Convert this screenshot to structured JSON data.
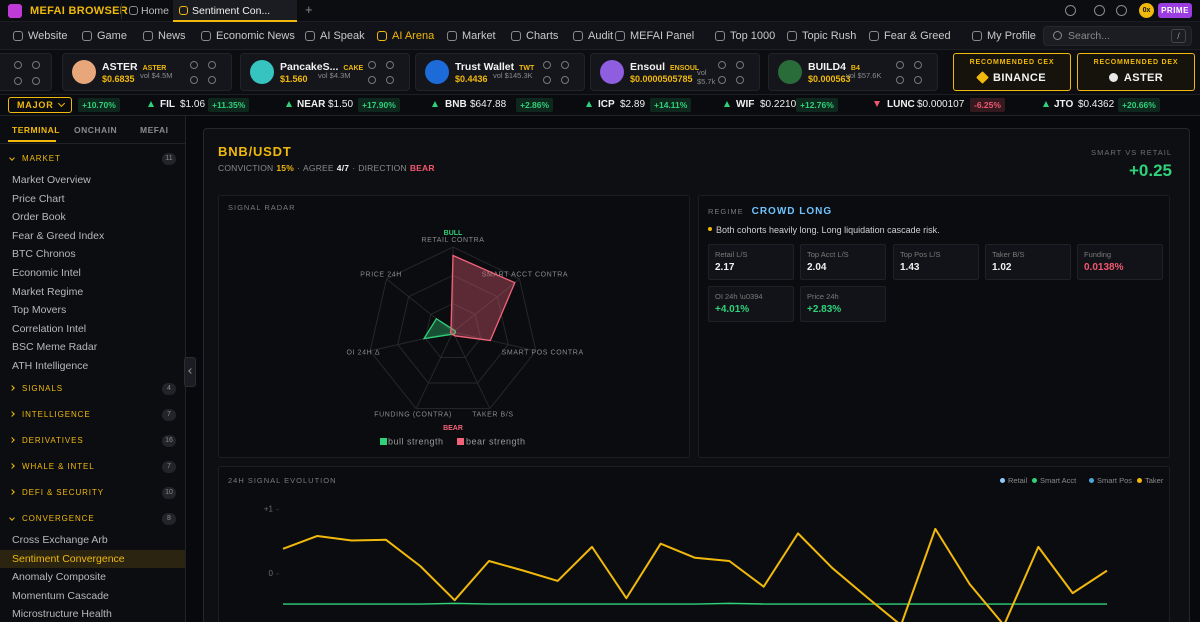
{
  "topbar": {
    "brand": "MEFAI BROWSER",
    "tabs": [
      "Home",
      "Sentiment Con..."
    ],
    "new_tab": "+",
    "wallet": "0x",
    "badge": "PRIME"
  },
  "nav": {
    "items": [
      "Website",
      "Game",
      "News",
      "Economic News",
      "AI Speak",
      "AI Arena",
      "Market",
      "Charts",
      "Audit",
      "MEFAI Panel",
      "Top 1000",
      "Topic Rush",
      "Fear & Greed",
      "My Profile"
    ],
    "active": 5,
    "search": "Search...",
    "shortcut": "/"
  },
  "tokens": [
    {
      "name": "ASTER",
      "ticker": "ASTER",
      "price": "$0.6835",
      "volume": "vol $4.5M"
    },
    {
      "name": "PancakeS...",
      "ticker": "CAKE",
      "price": "$1.560",
      "volume": "vol $4.3M"
    },
    {
      "name": "Trust Wallet",
      "ticker": "TWT",
      "price": "$0.4436",
      "volume": "vol $145.3K"
    },
    {
      "name": "Ensoul",
      "ticker": "ENSOUL",
      "price": "$0.0000505785",
      "volume": "vol $5.7k"
    },
    {
      "name": "BUILD4",
      "ticker": "B4",
      "price": "$0.000563",
      "volume": "vol $57.6K"
    }
  ],
  "recommended": [
    {
      "label": "RECOMMENDED CEX",
      "name": "BINANCE"
    },
    {
      "label": "RECOMMENDED DEX",
      "name": "ASTER"
    }
  ],
  "ticker": {
    "filter": "MAJOR",
    "items": [
      {
        "change": "+10.70%"
      },
      {
        "symbol": "FIL",
        "price": "$1.06",
        "change": "+11.35%"
      },
      {
        "symbol": "NEAR",
        "price": "$1.50",
        "change": "+17.90%"
      },
      {
        "symbol": "BNB",
        "price": "$647.88",
        "change": "+2.86%"
      },
      {
        "symbol": "ICP",
        "price": "$2.89",
        "change": "+14.11%"
      },
      {
        "symbol": "WIF",
        "price": "$0.2210",
        "change": "+12.76%"
      },
      {
        "symbol": "LUNC",
        "price": "$0.000107",
        "change": "-6.25%"
      },
      {
        "symbol": "JTO",
        "price": "$0.4362",
        "change": "+20.66%"
      }
    ]
  },
  "sidebar": {
    "tabs": [
      "TERMINAL",
      "ONCHAIN",
      "MEFAI"
    ],
    "sections": [
      {
        "title": "MARKET",
        "count": 11,
        "items": [
          "Market Overview",
          "Price Chart",
          "Order Book",
          "Fear & Greed Index",
          "BTC Chronos",
          "Economic Intel",
          "Market Regime",
          "Top Movers",
          "Correlation Intel",
          "BSC Meme Radar",
          "ATH Intelligence"
        ]
      },
      {
        "title": "SIGNALS",
        "count": 4
      },
      {
        "title": "INTELLIGENCE",
        "count": 7
      },
      {
        "title": "DERIVATIVES",
        "count": 16
      },
      {
        "title": "WHALE & INTEL",
        "count": 7
      },
      {
        "title": "DEFI & SECURITY",
        "count": 10
      },
      {
        "title": "CONVERGENCE",
        "count": 8,
        "items": [
          "Cross Exchange Arb",
          "Sentiment Convergence",
          "Anomaly Composite",
          "Momentum Cascade",
          "Microstructure Health"
        ],
        "active": 1
      }
    ]
  },
  "signal": {
    "pair": "BNB/USDT",
    "separator": "·",
    "conviction_label": "CONVICTION",
    "conviction": "15%",
    "agree_label": "AGREE",
    "agree": "4/7",
    "direction_label": "DIRECTION",
    "direction": "BEAR",
    "smart_vs_retail_label": "SMART VS RETAIL",
    "smart_vs_retail": "+0.25"
  },
  "regime": {
    "label": "REGIME",
    "value": "CROWD LONG",
    "note": "Both cohorts heavily long. Long liquidation cascade risk.",
    "stats": [
      {
        "label": "Retail L/S",
        "value": "2.17"
      },
      {
        "label": "Top Acct L/S",
        "value": "2.04"
      },
      {
        "label": "Top Pos L/S",
        "value": "1.43"
      },
      {
        "label": "Taker B/S",
        "value": "1.02"
      },
      {
        "label": "Funding",
        "value": "0.0138%",
        "color": "#f2576f"
      },
      {
        "label": "OI 24h \\u0394",
        "value": "+4.01%",
        "color": "#2fd17a"
      },
      {
        "label": "Price 24h",
        "value": "+2.83%",
        "color": "#2fd17a"
      }
    ]
  },
  "chart_data": [
    {
      "type": "radar",
      "title": "SIGNAL RADAR",
      "top_label": "BULL",
      "bottom_label": "BEAR",
      "axes": [
        "RETAIL CONTRA",
        "SMART ACCT CONTRA",
        "SMART POS CONTRA",
        "TAKER B/S",
        "FUNDING (CONTRA)",
        "OI 24H Δ",
        "PRICE 24H"
      ],
      "rlim": [
        0,
        1
      ],
      "series": [
        {
          "name": "bull strength",
          "color": "#2fd17a",
          "values": [
            0.03,
            0.03,
            0.03,
            0.03,
            0.03,
            0.35,
            0.25
          ]
        },
        {
          "name": "bear strength",
          "color": "#f2637a",
          "values": [
            0.9,
            0.93,
            0.45,
            0.05,
            0.03,
            0.03,
            0.03
          ]
        }
      ]
    },
    {
      "type": "line",
      "title": "24H SIGNAL EVOLUTION",
      "ylim": [
        -0.75,
        1.15
      ],
      "yticks": [
        {
          "value": 1,
          "label": "+1"
        },
        0
      ],
      "grid": false,
      "series": [
        {
          "name": "Retail",
          "color": "#8ecbff",
          "values": [
            null,
            null,
            null,
            null,
            null,
            null,
            null,
            null,
            null,
            null,
            null,
            null,
            null,
            null,
            null,
            null,
            null,
            null,
            null,
            null,
            null,
            null,
            null,
            null,
            null
          ]
        },
        {
          "name": "Smart Acct",
          "color": "#2fd17a",
          "values": [
            -0.47,
            -0.47,
            -0.47,
            -0.47,
            -0.47,
            -0.46,
            -0.47,
            -0.47,
            -0.47,
            -0.47,
            -0.47,
            -0.47,
            -0.47,
            -0.46,
            -0.47,
            -0.47,
            -0.47,
            -0.47,
            -0.47,
            -0.47,
            -0.47,
            -0.47,
            -0.47,
            -0.47,
            -0.47
          ]
        },
        {
          "name": "Smart Pos",
          "color": "#4aa8d8",
          "values": [
            null,
            null,
            null,
            null,
            null,
            null,
            null,
            null,
            null,
            null,
            null,
            null,
            null,
            null,
            null,
            null,
            null,
            null,
            null,
            null,
            null,
            null,
            null,
            null,
            null
          ]
        },
        {
          "name": "Taker",
          "color": "#f0b90b",
          "values": [
            0.39,
            0.59,
            0.52,
            0.53,
            0.12,
            -0.41,
            0.2,
            0.05,
            -0.11,
            0.42,
            -0.38,
            0.47,
            0.25,
            0.2,
            -0.2,
            0.63,
            0.09,
            -0.36,
            -0.8,
            0.7,
            -0.16,
            -0.8,
            0.42,
            -0.3,
            0.05
          ]
        }
      ]
    }
  ]
}
